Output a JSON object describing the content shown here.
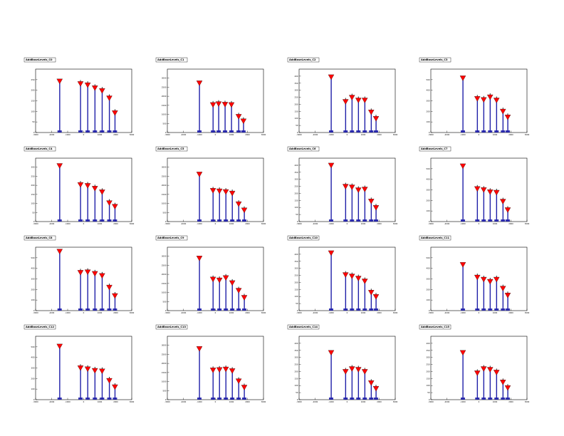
{
  "colors": {
    "histogram": "#1f1fa8",
    "peak_marker": "#ff0000",
    "marker_edge": "#000000",
    "frame": "#000000"
  },
  "chart_data": [
    {
      "title": "AddBaseLevels_C0",
      "type": "bar",
      "xlim": [
        -3000,
        3000
      ],
      "ylim": [
        0,
        300
      ],
      "yticks": [
        0,
        50,
        100,
        150,
        200,
        250
      ],
      "xticks": [
        -3000,
        -2000,
        -1000,
        0,
        1000,
        2000,
        3000
      ],
      "peaks": [
        {
          "x": -1500,
          "y": 240
        },
        {
          "x": -200,
          "y": 228
        },
        {
          "x": 250,
          "y": 222
        },
        {
          "x": 700,
          "y": 208
        },
        {
          "x": 1150,
          "y": 195
        },
        {
          "x": 1600,
          "y": 160
        },
        {
          "x": 1950,
          "y": 90
        }
      ]
    },
    {
      "title": "AddBaseLevels_C1",
      "type": "bar",
      "xlim": [
        -3000,
        3000
      ],
      "ylim": [
        0,
        3500
      ],
      "yticks": [
        0,
        500,
        1000,
        1500,
        2000,
        2500,
        3000
      ],
      "xticks": [
        -3000,
        -2000,
        -1000,
        0,
        1000,
        2000,
        3000
      ],
      "peaks": [
        {
          "x": -1000,
          "y": 2700
        },
        {
          "x": -150,
          "y": 1500
        },
        {
          "x": 200,
          "y": 1550
        },
        {
          "x": 600,
          "y": 1520
        },
        {
          "x": 1000,
          "y": 1500
        },
        {
          "x": 1450,
          "y": 850
        },
        {
          "x": 1750,
          "y": 600
        }
      ]
    },
    {
      "title": "AddBaseLevels_C2",
      "type": "bar",
      "xlim": [
        -3000,
        3000
      ],
      "ylim": [
        0,
        450
      ],
      "yticks": [
        0,
        50,
        100,
        150,
        200,
        250,
        300,
        350,
        400
      ],
      "xticks": [
        -3000,
        -2000,
        -1000,
        0,
        1000,
        2000,
        3000
      ],
      "peaks": [
        {
          "x": -1000,
          "y": 390
        },
        {
          "x": -100,
          "y": 215
        },
        {
          "x": 300,
          "y": 245
        },
        {
          "x": 700,
          "y": 225
        },
        {
          "x": 1100,
          "y": 225
        },
        {
          "x": 1500,
          "y": 140
        },
        {
          "x": 1800,
          "y": 95
        }
      ]
    },
    {
      "title": "AddBaseLevels_C3",
      "type": "bar",
      "xlim": [
        -3000,
        3000
      ],
      "ylim": [
        0,
        600
      ],
      "yticks": [
        0,
        100,
        200,
        300,
        400,
        500
      ],
      "xticks": [
        -3000,
        -2000,
        -1000,
        0,
        1000,
        2000,
        3000
      ],
      "peaks": [
        {
          "x": -1000,
          "y": 510
        },
        {
          "x": -100,
          "y": 315
        },
        {
          "x": 300,
          "y": 305
        },
        {
          "x": 700,
          "y": 330
        },
        {
          "x": 1100,
          "y": 300
        },
        {
          "x": 1500,
          "y": 195
        },
        {
          "x": 1800,
          "y": 140
        }
      ]
    },
    {
      "title": "AddBaseLevels_C4",
      "type": "bar",
      "xlim": [
        -3000,
        3000
      ],
      "ylim": [
        0,
        350
      ],
      "yticks": [
        0,
        50,
        100,
        150,
        200,
        250,
        300
      ],
      "xticks": [
        -3000,
        -2000,
        -1000,
        0,
        1000,
        2000,
        3000
      ],
      "peaks": [
        {
          "x": -1500,
          "y": 305
        },
        {
          "x": -200,
          "y": 200
        },
        {
          "x": 250,
          "y": 195
        },
        {
          "x": 700,
          "y": 180
        },
        {
          "x": 1150,
          "y": 160
        },
        {
          "x": 1600,
          "y": 100
        },
        {
          "x": 1950,
          "y": 80
        }
      ]
    },
    {
      "title": "AddBaseLevels_C5",
      "type": "bar",
      "xlim": [
        -3000,
        3000
      ],
      "ylim": [
        0,
        3500
      ],
      "yticks": [
        0,
        500,
        1000,
        1500,
        2000,
        2500,
        3000
      ],
      "xticks": [
        -3000,
        -2000,
        -1000,
        0,
        1000,
        2000,
        3000
      ],
      "peaks": [
        {
          "x": -1000,
          "y": 2580
        },
        {
          "x": -150,
          "y": 1680
        },
        {
          "x": 250,
          "y": 1650
        },
        {
          "x": 650,
          "y": 1610
        },
        {
          "x": 1050,
          "y": 1530
        },
        {
          "x": 1450,
          "y": 940
        },
        {
          "x": 1800,
          "y": 600
        }
      ]
    },
    {
      "title": "AddBaseLevels_C6",
      "type": "bar",
      "xlim": [
        -3000,
        3000
      ],
      "ylim": [
        0,
        450
      ],
      "yticks": [
        0,
        50,
        100,
        150,
        200,
        250,
        300,
        350,
        400
      ],
      "xticks": [
        -3000,
        -2000,
        -1000,
        0,
        1000,
        2000,
        3000
      ],
      "peaks": [
        {
          "x": -1000,
          "y": 395
        },
        {
          "x": -100,
          "y": 245
        },
        {
          "x": 300,
          "y": 240
        },
        {
          "x": 700,
          "y": 220
        },
        {
          "x": 1100,
          "y": 225
        },
        {
          "x": 1500,
          "y": 140
        },
        {
          "x": 1800,
          "y": 95
        }
      ]
    },
    {
      "title": "AddBaseLevels_C7",
      "type": "bar",
      "xlim": [
        -3000,
        3000
      ],
      "ylim": [
        0,
        600
      ],
      "yticks": [
        0,
        100,
        200,
        300,
        400,
        500
      ],
      "xticks": [
        -3000,
        -2000,
        -1000,
        0,
        1000,
        2000,
        3000
      ],
      "peaks": [
        {
          "x": -1000,
          "y": 520
        },
        {
          "x": -100,
          "y": 305
        },
        {
          "x": 300,
          "y": 295
        },
        {
          "x": 700,
          "y": 275
        },
        {
          "x": 1100,
          "y": 270
        },
        {
          "x": 1500,
          "y": 185
        },
        {
          "x": 1800,
          "y": 105
        }
      ]
    },
    {
      "title": "AddBaseLevels_C8",
      "type": "bar",
      "xlim": [
        -3000,
        3000
      ],
      "ylim": [
        0,
        600
      ],
      "yticks": [
        0,
        100,
        200,
        300,
        400,
        500
      ],
      "xticks": [
        -3000,
        -2000,
        -1000,
        0,
        1000,
        2000,
        3000
      ],
      "peaks": [
        {
          "x": -1500,
          "y": 555
        },
        {
          "x": -200,
          "y": 355
        },
        {
          "x": 250,
          "y": 360
        },
        {
          "x": 700,
          "y": 345
        },
        {
          "x": 1150,
          "y": 325
        },
        {
          "x": 1600,
          "y": 215
        },
        {
          "x": 1950,
          "y": 135
        }
      ]
    },
    {
      "title": "AddBaseLevels_C9",
      "type": "bar",
      "xlim": [
        -3000,
        3000
      ],
      "ylim": [
        0,
        3500
      ],
      "yticks": [
        0,
        500,
        1000,
        1500,
        2000,
        2500,
        3000
      ],
      "xticks": [
        -3000,
        -2000,
        -1000,
        0,
        1000,
        2000,
        3000
      ],
      "peaks": [
        {
          "x": -1000,
          "y": 2860
        },
        {
          "x": -150,
          "y": 1700
        },
        {
          "x": 250,
          "y": 1650
        },
        {
          "x": 650,
          "y": 1780
        },
        {
          "x": 1050,
          "y": 1500
        },
        {
          "x": 1450,
          "y": 1080
        },
        {
          "x": 1800,
          "y": 690
        }
      ]
    },
    {
      "title": "AddBaseLevels_C10",
      "type": "bar",
      "xlim": [
        -3000,
        3000
      ],
      "ylim": [
        0,
        450
      ],
      "yticks": [
        0,
        50,
        100,
        150,
        200,
        250,
        300,
        350,
        400
      ],
      "xticks": [
        -3000,
        -2000,
        -1000,
        0,
        1000,
        2000,
        3000
      ],
      "peaks": [
        {
          "x": -1000,
          "y": 405
        },
        {
          "x": -100,
          "y": 250
        },
        {
          "x": 300,
          "y": 240
        },
        {
          "x": 700,
          "y": 225
        },
        {
          "x": 1100,
          "y": 205
        },
        {
          "x": 1500,
          "y": 125
        },
        {
          "x": 1800,
          "y": 95
        }
      ]
    },
    {
      "title": "AddBaseLevels_C11",
      "type": "bar",
      "xlim": [
        -3000,
        3000
      ],
      "ylim": [
        0,
        600
      ],
      "yticks": [
        0,
        100,
        200,
        300,
        400,
        500
      ],
      "xticks": [
        -3000,
        -2000,
        -1000,
        0,
        1000,
        2000,
        3000
      ],
      "peaks": [
        {
          "x": -1000,
          "y": 430
        },
        {
          "x": -100,
          "y": 310
        },
        {
          "x": 300,
          "y": 290
        },
        {
          "x": 700,
          "y": 270
        },
        {
          "x": 1100,
          "y": 290
        },
        {
          "x": 1500,
          "y": 205
        },
        {
          "x": 1800,
          "y": 140
        }
      ]
    },
    {
      "title": "AddBaseLevels_C12",
      "type": "bar",
      "xlim": [
        -3000,
        3000
      ],
      "ylim": [
        0,
        600
      ],
      "yticks": [
        0,
        100,
        200,
        300,
        400,
        500
      ],
      "xticks": [
        -3000,
        -2000,
        -1000,
        0,
        1000,
        2000,
        3000
      ],
      "peaks": [
        {
          "x": -1500,
          "y": 500
        },
        {
          "x": -200,
          "y": 295
        },
        {
          "x": 250,
          "y": 285
        },
        {
          "x": 700,
          "y": 270
        },
        {
          "x": 1150,
          "y": 265
        },
        {
          "x": 1600,
          "y": 175
        },
        {
          "x": 1950,
          "y": 115
        }
      ]
    },
    {
      "title": "AddBaseLevels_C13",
      "type": "bar",
      "xlim": [
        -3000,
        3000
      ],
      "ylim": [
        0,
        3500
      ],
      "yticks": [
        0,
        500,
        1000,
        1500,
        2000,
        2500,
        3000
      ],
      "xticks": [
        -3000,
        -2000,
        -1000,
        0,
        1000,
        2000,
        3000
      ],
      "peaks": [
        {
          "x": -1000,
          "y": 2780
        },
        {
          "x": -150,
          "y": 1600
        },
        {
          "x": 250,
          "y": 1620
        },
        {
          "x": 650,
          "y": 1650
        },
        {
          "x": 1050,
          "y": 1560
        },
        {
          "x": 1450,
          "y": 1000
        },
        {
          "x": 1800,
          "y": 650
        }
      ]
    },
    {
      "title": "AddBaseLevels_C14",
      "type": "bar",
      "xlim": [
        -3000,
        3000
      ],
      "ylim": [
        0,
        450
      ],
      "yticks": [
        0,
        50,
        100,
        150,
        200,
        250,
        300,
        350,
        400
      ],
      "xticks": [
        -3000,
        -2000,
        -1000,
        0,
        1000,
        2000,
        3000
      ],
      "peaks": [
        {
          "x": -1000,
          "y": 330
        },
        {
          "x": -100,
          "y": 195
        },
        {
          "x": 300,
          "y": 215
        },
        {
          "x": 700,
          "y": 210
        },
        {
          "x": 1100,
          "y": 195
        },
        {
          "x": 1500,
          "y": 115
        },
        {
          "x": 1800,
          "y": 75
        }
      ]
    },
    {
      "title": "AddBaseLevels_C15",
      "type": "bar",
      "xlim": [
        -3000,
        3000
      ],
      "ylim": [
        0,
        450
      ],
      "yticks": [
        0,
        50,
        100,
        150,
        200,
        250,
        300,
        350,
        400
      ],
      "xticks": [
        -3000,
        -2000,
        -1000,
        0,
        1000,
        2000,
        3000
      ],
      "peaks": [
        {
          "x": -1000,
          "y": 330
        },
        {
          "x": -100,
          "y": 185
        },
        {
          "x": 300,
          "y": 215
        },
        {
          "x": 700,
          "y": 210
        },
        {
          "x": 1100,
          "y": 190
        },
        {
          "x": 1500,
          "y": 120
        },
        {
          "x": 1800,
          "y": 80
        }
      ]
    }
  ]
}
